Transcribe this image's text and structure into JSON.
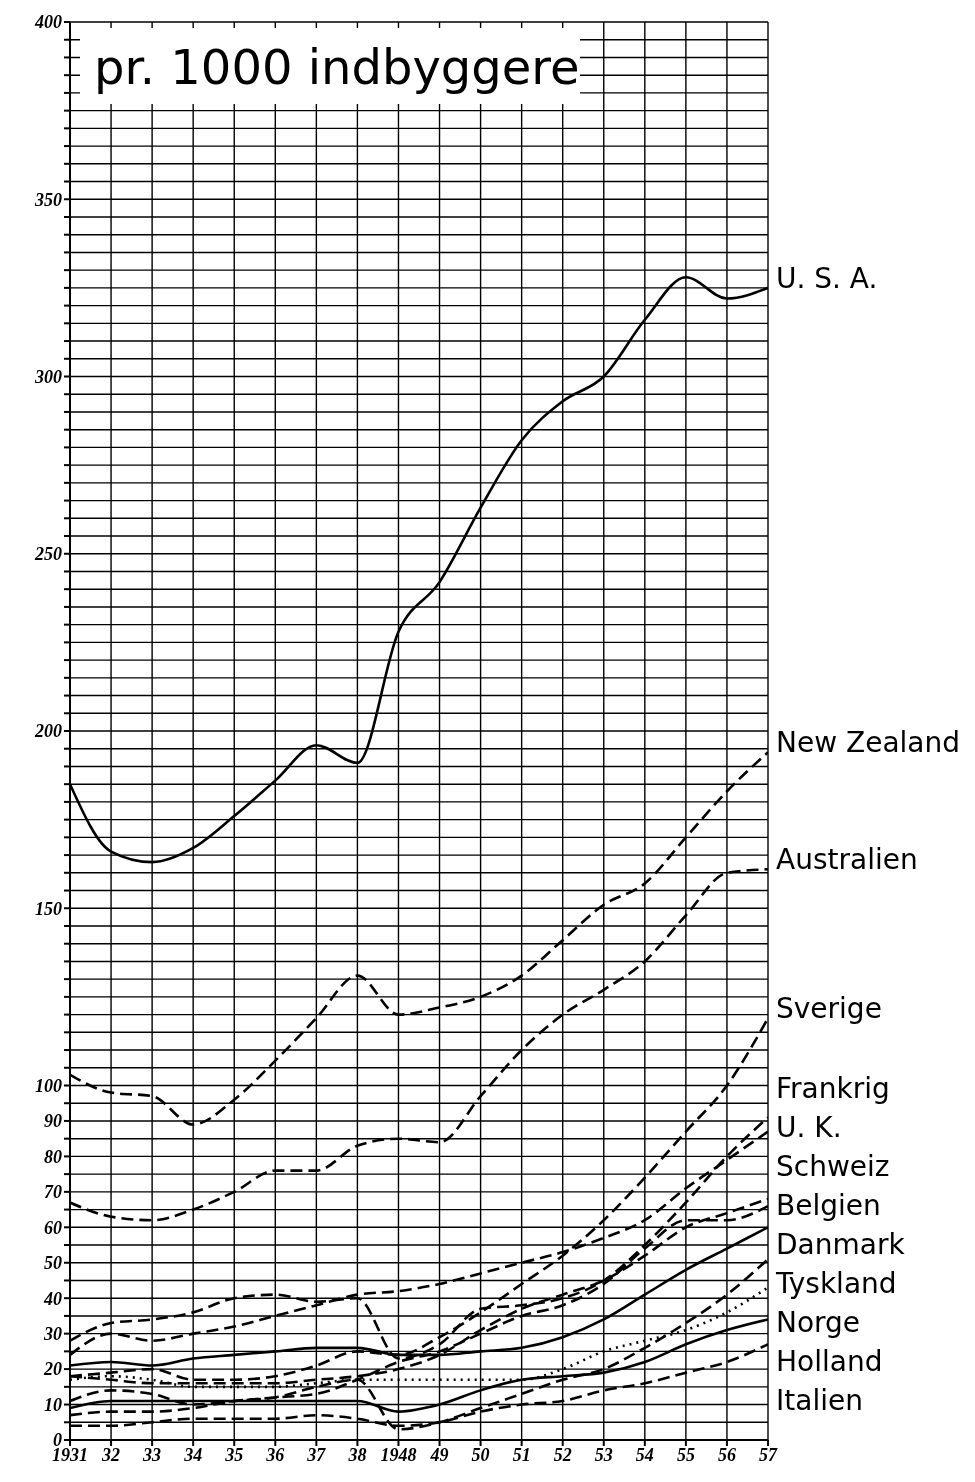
{
  "chart_data": {
    "type": "line",
    "title": "pr. 1000 indbyggere",
    "categories": [
      "1931",
      "32",
      "33",
      "34",
      "35",
      "36",
      "37",
      "38",
      "1948",
      "49",
      "50",
      "51",
      "52",
      "53",
      "54",
      "55",
      "56",
      "57"
    ],
    "ylim": [
      0,
      400
    ],
    "yticks": [
      0,
      {
        "value": 5,
        "label": null
      },
      10,
      {
        "value": 15,
        "label": null
      },
      20,
      {
        "value": 25,
        "label": null
      },
      30,
      {
        "value": 35,
        "label": null
      },
      40,
      {
        "value": 45,
        "label": null
      },
      50,
      {
        "value": 55,
        "label": null
      },
      60,
      {
        "value": 65,
        "label": null
      },
      70,
      {
        "value": 75,
        "label": null
      },
      80,
      {
        "value": 85,
        "label": null
      },
      90,
      {
        "value": 95,
        "label": null
      },
      100,
      {
        "value": 105,
        "label": null
      },
      {
        "value": 110,
        "label": null
      },
      {
        "value": 115,
        "label": null
      },
      {
        "value": 120,
        "label": null
      },
      {
        "value": 125,
        "label": null
      },
      {
        "value": 130,
        "label": null
      },
      {
        "value": 135,
        "label": null
      },
      {
        "value": 140,
        "label": null
      },
      {
        "value": 145,
        "label": null
      },
      150,
      {
        "value": 155,
        "label": null
      },
      {
        "value": 160,
        "label": null
      },
      {
        "value": 165,
        "label": null
      },
      {
        "value": 170,
        "label": null
      },
      {
        "value": 175,
        "label": null
      },
      {
        "value": 180,
        "label": null
      },
      {
        "value": 185,
        "label": null
      },
      {
        "value": 190,
        "label": null
      },
      {
        "value": 195,
        "label": null
      },
      200,
      {
        "value": 205,
        "label": null
      },
      {
        "value": 210,
        "label": null
      },
      {
        "value": 215,
        "label": null
      },
      {
        "value": 220,
        "label": null
      },
      {
        "value": 225,
        "label": null
      },
      {
        "value": 230,
        "label": null
      },
      {
        "value": 235,
        "label": null
      },
      {
        "value": 240,
        "label": null
      },
      {
        "value": 245,
        "label": null
      },
      250,
      {
        "value": 255,
        "label": null
      },
      {
        "value": 260,
        "label": null
      },
      {
        "value": 265,
        "label": null
      },
      {
        "value": 270,
        "label": null
      },
      {
        "value": 275,
        "label": null
      },
      {
        "value": 280,
        "label": null
      },
      {
        "value": 285,
        "label": null
      },
      {
        "value": 290,
        "label": null
      },
      {
        "value": 295,
        "label": null
      },
      300,
      {
        "value": 305,
        "label": null
      },
      {
        "value": 310,
        "label": null
      },
      {
        "value": 315,
        "label": null
      },
      {
        "value": 320,
        "label": null
      },
      {
        "value": 325,
        "label": null
      },
      {
        "value": 330,
        "label": null
      },
      {
        "value": 335,
        "label": null
      },
      {
        "value": 340,
        "label": null
      },
      {
        "value": 345,
        "label": null
      },
      350,
      {
        "value": 355,
        "label": null
      },
      {
        "value": 360,
        "label": null
      },
      {
        "value": 365,
        "label": null
      },
      {
        "value": 370,
        "label": null
      },
      {
        "value": 375,
        "label": null
      },
      {
        "value": 380,
        "label": null
      },
      {
        "value": 385,
        "label": null
      },
      {
        "value": 390,
        "label": null
      },
      {
        "value": 395,
        "label": null
      },
      400
    ],
    "grid": true,
    "series": [
      {
        "name": "U. S. A.",
        "color": "#000000",
        "line_style": "solid",
        "values": [
          185,
          166,
          163,
          167,
          176,
          186,
          196,
          191,
          228,
          242,
          263,
          282,
          293,
          300,
          316,
          328,
          322,
          325
        ]
      },
      {
        "name": "New Zealand",
        "color": "#000000",
        "line_style": "dashed",
        "values": [
          103,
          98,
          97,
          89,
          96,
          107,
          119,
          131,
          120,
          122,
          125,
          131,
          141,
          151,
          157,
          170,
          183,
          194
        ]
      },
      {
        "name": "Australien",
        "color": "#000000",
        "line_style": "dashed",
        "values": [
          67,
          63,
          62,
          65,
          70,
          76,
          76,
          83,
          85,
          84,
          97,
          110,
          120,
          127,
          135,
          148,
          160,
          161
        ]
      },
      {
        "name": "Sverige",
        "color": "#000000",
        "line_style": "dashed",
        "values": [
          18,
          19,
          20,
          17,
          17,
          18,
          21,
          25,
          24,
          29,
          36,
          44,
          52,
          62,
          74,
          87,
          100,
          119
        ]
      },
      {
        "name": "Frankrig",
        "color": "#000000",
        "line_style": "dashed",
        "values": [
          28,
          33,
          34,
          36,
          40,
          41,
          39,
          40,
          23,
          27,
          37,
          38,
          40,
          45,
          55,
          67,
          80,
          91
        ]
      },
      {
        "name": "U. K.",
        "color": "#000000",
        "line_style": "dashed",
        "values": [
          24,
          30,
          28,
          30,
          32,
          35,
          38,
          41,
          42,
          44,
          47,
          50,
          53,
          57,
          62,
          71,
          79,
          87
        ]
      },
      {
        "name": "Schweiz",
        "color": "#000000",
        "line_style": "dashed",
        "values": [
          18,
          17,
          16,
          16,
          16,
          16,
          17,
          18,
          20,
          24,
          31,
          37,
          41,
          45,
          52,
          60,
          64,
          68
        ]
      },
      {
        "name": "Belgien",
        "color": "#000000",
        "line_style": "dashed",
        "values": [
          11,
          14,
          13,
          10,
          11,
          12,
          13,
          17,
          22,
          25,
          30,
          35,
          38,
          44,
          54,
          62,
          62,
          66
        ]
      },
      {
        "name": "Danmark",
        "color": "#000000",
        "line_style": "solid",
        "values": [
          21,
          22,
          21,
          23,
          24,
          25,
          26,
          26,
          24,
          24,
          25,
          26,
          29,
          34,
          41,
          48,
          54,
          60
        ]
      },
      {
        "name": "Tyskland",
        "color": "#000000",
        "line_style": "dashed",
        "values": [
          7,
          8,
          8,
          9,
          11,
          12,
          15,
          17,
          3,
          5,
          9,
          13,
          17,
          20,
          26,
          33,
          41,
          51
        ]
      },
      {
        "name": "Norge",
        "color": "#000000",
        "line_style": "dotted",
        "values": [
          17,
          18,
          17,
          15,
          15,
          15,
          16,
          17,
          17,
          17,
          17,
          17,
          20,
          25,
          28,
          31,
          36,
          43
        ]
      },
      {
        "name": "Holland",
        "color": "#000000",
        "line_style": "solid",
        "values": [
          9,
          11,
          11,
          11,
          11,
          11,
          11,
          11,
          8,
          10,
          14,
          17,
          18,
          19,
          22,
          27,
          31,
          34
        ]
      },
      {
        "name": "Italien",
        "color": "#000000",
        "line_style": "dashed",
        "values": [
          4,
          4,
          5,
          6,
          6,
          6,
          7,
          6,
          4,
          5,
          8,
          10,
          11,
          14,
          16,
          19,
          22,
          27
        ]
      }
    ]
  }
}
